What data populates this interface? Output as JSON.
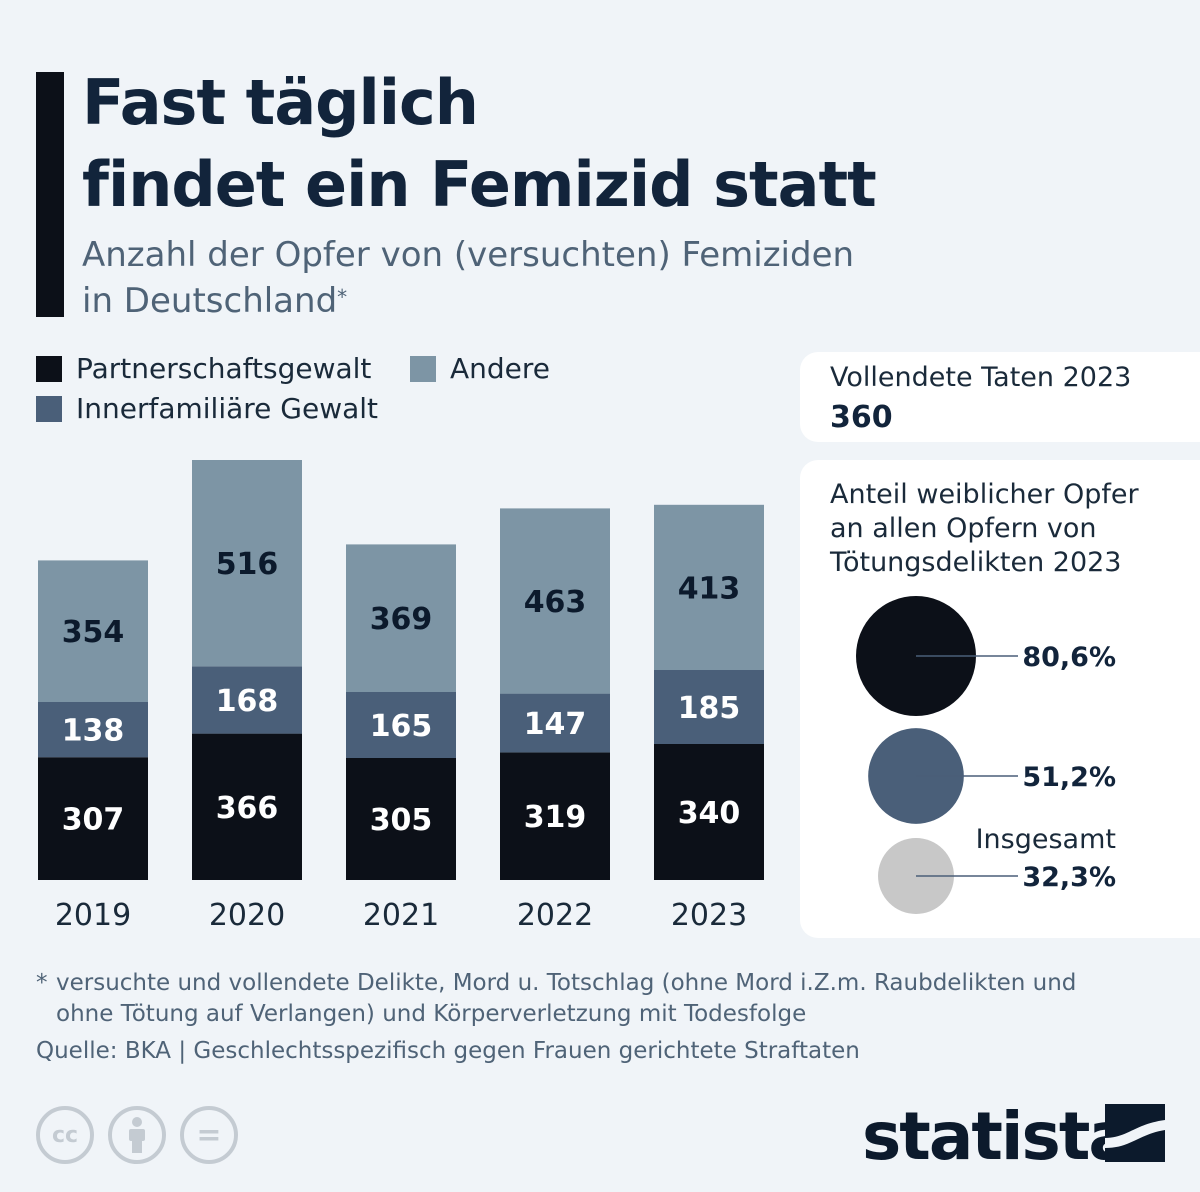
{
  "title": [
    "Fast täglich",
    "findet ein Femizid statt"
  ],
  "subtitle": [
    "Anzahl der Opfer von (versuchten) Femiziden",
    "in Deutschland"
  ],
  "subtitle_mark": "*",
  "legend": [
    {
      "label": "Partnerschaftsgewalt",
      "color": "#0c1018"
    },
    {
      "label": "Andere",
      "color": "#7d95a5"
    },
    {
      "label": "Innerfamiliäre Gewalt",
      "color": "#4a5f79"
    }
  ],
  "colors": {
    "partner": "#0c1018",
    "family": "#4a5f79",
    "other": "#7d95a5",
    "total_circle": "#c8c8c8"
  },
  "chart_data": {
    "type": "bar",
    "stacked": true,
    "categories": [
      "2019",
      "2020",
      "2021",
      "2022",
      "2023"
    ],
    "series": [
      {
        "name": "Partnerschaftsgewalt",
        "values": [
          307,
          366,
          305,
          319,
          340
        ]
      },
      {
        "name": "Innerfamiliäre Gewalt",
        "values": [
          138,
          168,
          165,
          147,
          185
        ]
      },
      {
        "name": "Andere",
        "values": [
          354,
          516,
          369,
          463,
          413
        ]
      }
    ],
    "title": "Anzahl der Opfer von (versuchten) Femiziden in Deutschland",
    "ylim": [
      0,
      1050
    ]
  },
  "panel1": {
    "label": "Vollendete Taten 2023",
    "value": "360"
  },
  "panel2": {
    "label": [
      "Anteil weiblicher Opfer",
      "an allen Opfern von",
      "Tötungsdelikten 2023"
    ],
    "circles": [
      {
        "value": 80.6,
        "label": "80,6%",
        "sublabel": ""
      },
      {
        "value": 51.2,
        "label": "51,2%",
        "sublabel": ""
      },
      {
        "value": 32.3,
        "label": "32,3%",
        "sublabel": "Insgesamt"
      }
    ]
  },
  "footnote": {
    "mark": "*",
    "text": "versuchte und vollendete Delikte, Mord u. Totschlag (ohne Mord i.Z.m. Raubdelikten und ohne Tötung auf Verlangen) und Körperverletzung mit Todesfolge"
  },
  "source": "Quelle: BKA | Geschlechtsspezifisch gegen Frauen gerichtete Straftaten",
  "cc_icons": [
    {
      "icon": "cc-icon",
      "label": "cc"
    },
    {
      "icon": "attribution-icon",
      "label": "i"
    },
    {
      "icon": "no-derivatives-icon",
      "label": "="
    }
  ],
  "brand": "statista"
}
